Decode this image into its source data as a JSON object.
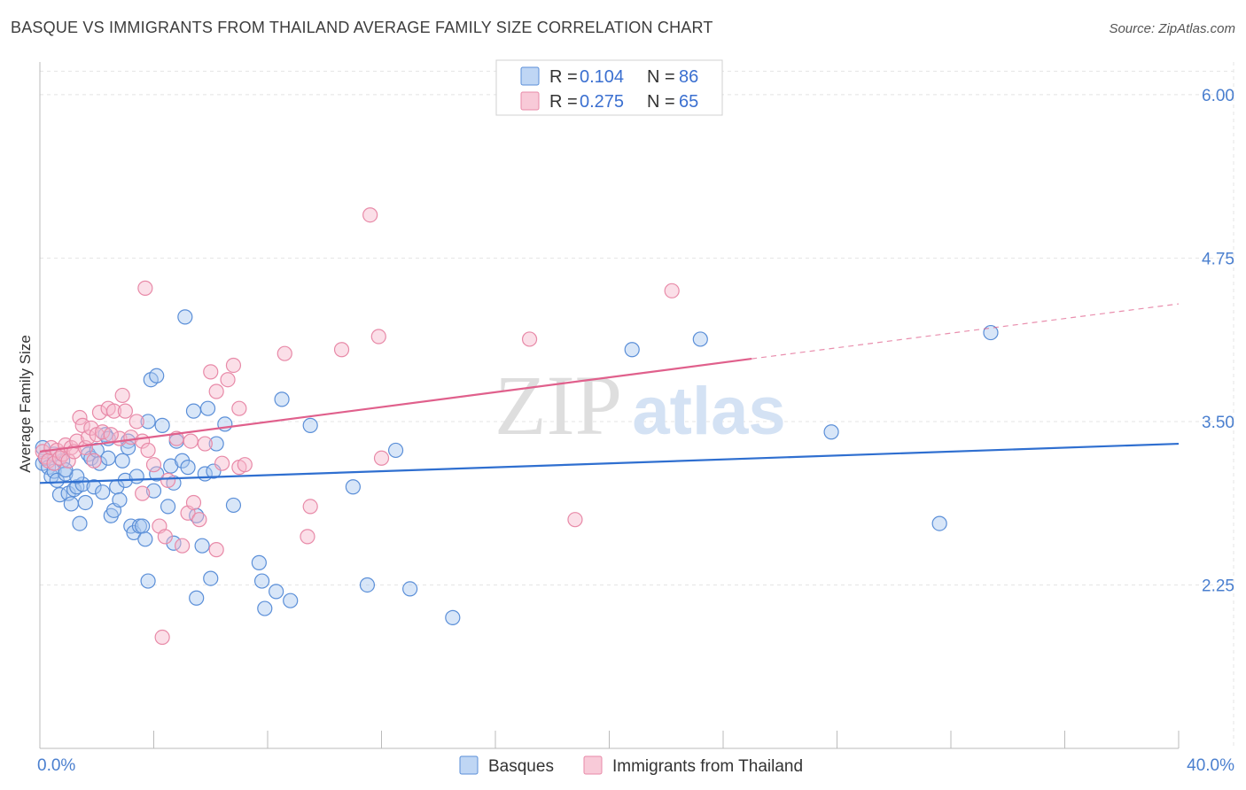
{
  "title": "BASQUE VS IMMIGRANTS FROM THAILAND AVERAGE FAMILY SIZE CORRELATION CHART",
  "source": "Source: ZipAtlas.com",
  "watermark": {
    "zip": "ZIP",
    "atlas": "atlas"
  },
  "colors": {
    "basques_fill": "#a9c8f0",
    "basques_stroke": "#5b8fd8",
    "basques_line": "#2f6fd0",
    "thailand_fill": "#f6b8cb",
    "thailand_stroke": "#e88aa8",
    "thailand_line": "#e0608c",
    "grid": "#e4e4e4",
    "tick_label": "#4a7fcf"
  },
  "legend_top": {
    "rows": [
      {
        "r_label": "R =",
        "r_value": "0.104",
        "n_label": "N =",
        "n_value": "86"
      },
      {
        "r_label": "R =",
        "r_value": "0.275",
        "n_label": "N =",
        "n_value": "65"
      }
    ]
  },
  "chart_data": {
    "type": "scatter",
    "xlabel": "",
    "ylabel": "Average Family Size",
    "xlim": [
      0,
      40
    ],
    "ylim": [
      1.0,
      6.25
    ],
    "x_tick_labels": [
      "0.0%",
      "40.0%"
    ],
    "y_ticks": [
      {
        "value": 2.25,
        "label": "2.25"
      },
      {
        "value": 3.5,
        "label": "3.50"
      },
      {
        "value": 4.75,
        "label": "4.75"
      },
      {
        "value": 6.0,
        "label": "6.00"
      }
    ],
    "grid": true,
    "legend": "bottom-center",
    "series": [
      {
        "name": "Basques",
        "r": 0.104,
        "n": 86,
        "trend": {
          "x0": 0,
          "y0": 3.03,
          "x1": 40,
          "y1": 3.33
        },
        "points": [
          [
            0.1,
            3.3
          ],
          [
            0.1,
            3.18
          ],
          [
            0.2,
            3.22
          ],
          [
            0.3,
            3.15
          ],
          [
            0.4,
            3.08
          ],
          [
            0.5,
            3.12
          ],
          [
            0.6,
            3.05
          ],
          [
            0.7,
            2.94
          ],
          [
            0.8,
            3.2
          ],
          [
            0.9,
            3.1
          ],
          [
            1.0,
            2.95
          ],
          [
            1.1,
            2.87
          ],
          [
            1.2,
            2.98
          ],
          [
            1.3,
            3.0
          ],
          [
            1.4,
            2.72
          ],
          [
            1.5,
            3.02
          ],
          [
            1.6,
            2.88
          ],
          [
            1.7,
            3.25
          ],
          [
            1.8,
            3.22
          ],
          [
            2.0,
            3.28
          ],
          [
            2.1,
            3.18
          ],
          [
            1.9,
            3.0
          ],
          [
            2.2,
            2.96
          ],
          [
            2.3,
            3.4
          ],
          [
            2.4,
            3.37
          ],
          [
            2.5,
            2.78
          ],
          [
            2.6,
            2.82
          ],
          [
            2.7,
            3.0
          ],
          [
            2.8,
            2.9
          ],
          [
            2.9,
            3.2
          ],
          [
            3.0,
            3.05
          ],
          [
            3.1,
            3.35
          ],
          [
            3.2,
            2.7
          ],
          [
            3.3,
            2.65
          ],
          [
            3.4,
            3.08
          ],
          [
            3.5,
            2.7
          ],
          [
            3.6,
            2.7
          ],
          [
            3.7,
            2.6
          ],
          [
            3.8,
            3.5
          ],
          [
            3.9,
            3.82
          ],
          [
            4.0,
            2.97
          ],
          [
            4.1,
            3.1
          ],
          [
            4.3,
            3.47
          ],
          [
            4.5,
            2.85
          ],
          [
            4.6,
            3.16
          ],
          [
            4.7,
            3.03
          ],
          [
            4.8,
            3.35
          ],
          [
            5.0,
            3.2
          ],
          [
            5.2,
            3.15
          ],
          [
            5.4,
            3.58
          ],
          [
            5.5,
            2.78
          ],
          [
            5.7,
            2.55
          ],
          [
            5.8,
            3.1
          ],
          [
            6.0,
            2.3
          ],
          [
            6.2,
            3.33
          ],
          [
            6.5,
            3.48
          ],
          [
            6.8,
            2.86
          ],
          [
            3.8,
            2.28
          ],
          [
            5.5,
            2.15
          ],
          [
            7.7,
            2.42
          ],
          [
            7.8,
            2.28
          ],
          [
            7.9,
            2.07
          ],
          [
            8.3,
            2.2
          ],
          [
            8.8,
            2.13
          ],
          [
            9.5,
            3.47
          ],
          [
            11.0,
            3.0
          ],
          [
            11.5,
            2.25
          ],
          [
            12.5,
            3.28
          ],
          [
            13.0,
            2.22
          ],
          [
            14.5,
            2.0
          ],
          [
            20.8,
            4.05
          ],
          [
            23.2,
            4.13
          ],
          [
            27.8,
            3.42
          ],
          [
            31.6,
            2.72
          ],
          [
            33.4,
            4.18
          ],
          [
            4.1,
            3.85
          ],
          [
            5.1,
            4.3
          ],
          [
            5.9,
            3.6
          ],
          [
            8.5,
            3.67
          ],
          [
            4.7,
            2.57
          ],
          [
            1.3,
            3.08
          ],
          [
            0.9,
            3.13
          ],
          [
            2.4,
            3.22
          ],
          [
            3.1,
            3.3
          ],
          [
            6.1,
            3.12
          ],
          [
            0.5,
            3.25
          ]
        ]
      },
      {
        "name": "Immigrants from Thailand",
        "r": 0.275,
        "n": 65,
        "trend": {
          "x0": 0,
          "y0": 3.27,
          "x1": 25,
          "y1": 3.98,
          "dash_x0": 25,
          "dash_y0": 3.98,
          "dash_x1": 40,
          "dash_y1": 4.4
        },
        "points": [
          [
            0.1,
            3.27
          ],
          [
            0.2,
            3.23
          ],
          [
            0.3,
            3.2
          ],
          [
            0.4,
            3.3
          ],
          [
            0.5,
            3.18
          ],
          [
            0.6,
            3.28
          ],
          [
            0.7,
            3.22
          ],
          [
            0.8,
            3.25
          ],
          [
            0.9,
            3.32
          ],
          [
            1.0,
            3.2
          ],
          [
            1.1,
            3.3
          ],
          [
            1.2,
            3.27
          ],
          [
            1.3,
            3.35
          ],
          [
            1.4,
            3.53
          ],
          [
            1.5,
            3.47
          ],
          [
            1.6,
            3.3
          ],
          [
            1.7,
            3.38
          ],
          [
            1.8,
            3.45
          ],
          [
            1.9,
            3.2
          ],
          [
            2.0,
            3.4
          ],
          [
            2.1,
            3.57
          ],
          [
            2.2,
            3.42
          ],
          [
            2.4,
            3.6
          ],
          [
            2.6,
            3.58
          ],
          [
            2.8,
            3.37
          ],
          [
            2.9,
            3.7
          ],
          [
            3.0,
            3.58
          ],
          [
            3.2,
            3.38
          ],
          [
            3.4,
            3.5
          ],
          [
            3.6,
            3.35
          ],
          [
            3.8,
            3.28
          ],
          [
            4.0,
            3.17
          ],
          [
            3.6,
            2.95
          ],
          [
            4.2,
            2.7
          ],
          [
            4.4,
            2.62
          ],
          [
            4.5,
            3.05
          ],
          [
            4.8,
            3.37
          ],
          [
            5.0,
            2.55
          ],
          [
            5.2,
            2.8
          ],
          [
            5.4,
            2.88
          ],
          [
            5.6,
            2.75
          ],
          [
            5.8,
            3.33
          ],
          [
            6.0,
            3.88
          ],
          [
            6.2,
            3.73
          ],
          [
            6.4,
            3.18
          ],
          [
            6.6,
            3.82
          ],
          [
            6.8,
            3.93
          ],
          [
            7.0,
            3.15
          ],
          [
            7.2,
            3.17
          ],
          [
            9.4,
            2.62
          ],
          [
            9.5,
            2.85
          ],
          [
            12.0,
            3.22
          ],
          [
            10.6,
            4.05
          ],
          [
            11.9,
            4.15
          ],
          [
            17.2,
            4.13
          ],
          [
            18.8,
            2.75
          ],
          [
            22.2,
            4.5
          ],
          [
            3.7,
            4.52
          ],
          [
            4.3,
            1.85
          ],
          [
            8.6,
            4.02
          ],
          [
            11.6,
            5.08
          ],
          [
            6.2,
            2.52
          ],
          [
            5.3,
            3.35
          ],
          [
            7.0,
            3.6
          ],
          [
            2.5,
            3.4
          ]
        ]
      }
    ]
  }
}
